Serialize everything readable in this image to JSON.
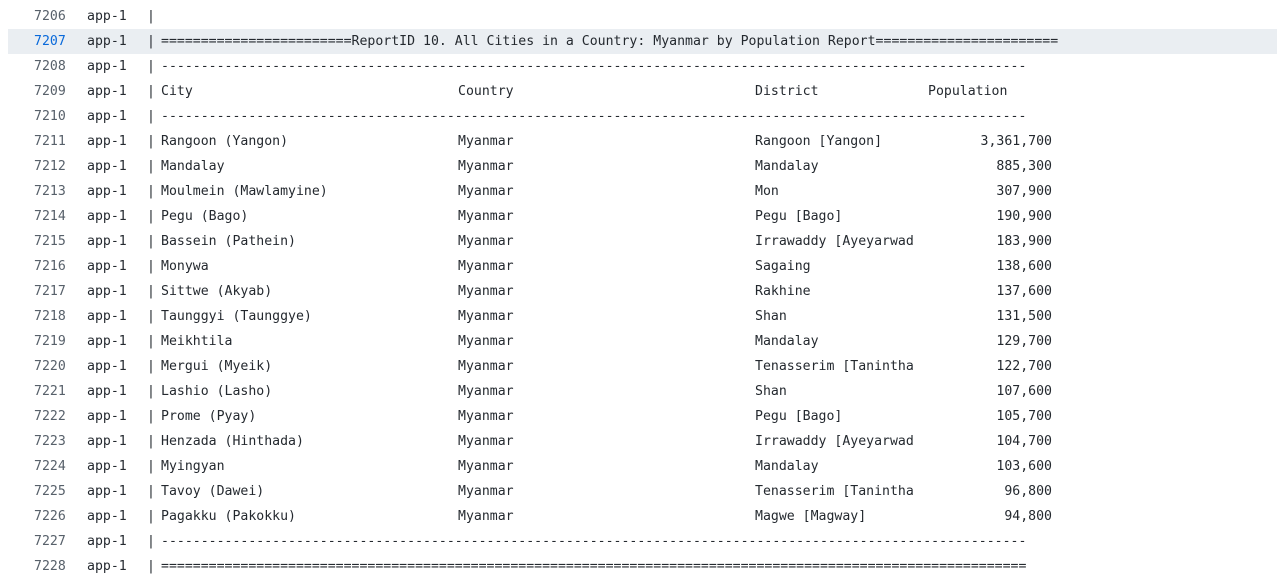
{
  "log": {
    "prefix": "app-1",
    "bar": "|",
    "lines": [
      {
        "no": "7206",
        "kind": "text",
        "text": ""
      },
      {
        "no": "7207",
        "kind": "text",
        "highlight": true,
        "text": "========================ReportID 10. All Cities in a Country: Myanmar by Population Report======================="
      },
      {
        "no": "7208",
        "kind": "text",
        "text": "-------------------------------------------------------------------------------------------------------------"
      },
      {
        "no": "7209",
        "kind": "header",
        "city": "City",
        "country": "Country",
        "district": "District",
        "population": "Population"
      },
      {
        "no": "7210",
        "kind": "text",
        "text": "-------------------------------------------------------------------------------------------------------------"
      },
      {
        "no": "7211",
        "kind": "row",
        "city": "Rangoon (Yangon)",
        "country": "Myanmar",
        "district": "Rangoon [Yangon]",
        "population": "3,361,700"
      },
      {
        "no": "7212",
        "kind": "row",
        "city": "Mandalay",
        "country": "Myanmar",
        "district": "Mandalay",
        "population": "885,300"
      },
      {
        "no": "7213",
        "kind": "row",
        "city": "Moulmein (Mawlamyine)",
        "country": "Myanmar",
        "district": "Mon",
        "population": "307,900"
      },
      {
        "no": "7214",
        "kind": "row",
        "city": "Pegu (Bago)",
        "country": "Myanmar",
        "district": "Pegu [Bago]",
        "population": "190,900"
      },
      {
        "no": "7215",
        "kind": "row",
        "city": "Bassein (Pathein)",
        "country": "Myanmar",
        "district": "Irrawaddy [Ayeyarwad",
        "population": "183,900"
      },
      {
        "no": "7216",
        "kind": "row",
        "city": "Monywa",
        "country": "Myanmar",
        "district": "Sagaing",
        "population": "138,600"
      },
      {
        "no": "7217",
        "kind": "row",
        "city": "Sittwe (Akyab)",
        "country": "Myanmar",
        "district": "Rakhine",
        "population": "137,600"
      },
      {
        "no": "7218",
        "kind": "row",
        "city": "Taunggyi (Taunggye)",
        "country": "Myanmar",
        "district": "Shan",
        "population": "131,500"
      },
      {
        "no": "7219",
        "kind": "row",
        "city": "Meikhtila",
        "country": "Myanmar",
        "district": "Mandalay",
        "population": "129,700"
      },
      {
        "no": "7220",
        "kind": "row",
        "city": "Mergui (Myeik)",
        "country": "Myanmar",
        "district": "Tenasserim [Tanintha",
        "population": "122,700"
      },
      {
        "no": "7221",
        "kind": "row",
        "city": "Lashio (Lasho)",
        "country": "Myanmar",
        "district": "Shan",
        "population": "107,600"
      },
      {
        "no": "7222",
        "kind": "row",
        "city": "Prome (Pyay)",
        "country": "Myanmar",
        "district": "Pegu [Bago]",
        "population": "105,700"
      },
      {
        "no": "7223",
        "kind": "row",
        "city": "Henzada (Hinthada)",
        "country": "Myanmar",
        "district": "Irrawaddy [Ayeyarwad",
        "population": "104,700"
      },
      {
        "no": "7224",
        "kind": "row",
        "city": "Myingyan",
        "country": "Myanmar",
        "district": "Mandalay",
        "population": "103,600"
      },
      {
        "no": "7225",
        "kind": "row",
        "city": "Tavoy (Dawei)",
        "country": "Myanmar",
        "district": "Tenasserim [Tanintha",
        "population": "96,800"
      },
      {
        "no": "7226",
        "kind": "row",
        "city": "Pagakku (Pakokku)",
        "country": "Myanmar",
        "district": "Magwe [Magway]",
        "population": "94,800"
      },
      {
        "no": "7227",
        "kind": "text",
        "text": "-------------------------------------------------------------------------------------------------------------"
      },
      {
        "no": "7228",
        "kind": "text",
        "text": "============================================================================================================="
      }
    ]
  },
  "colors": {
    "highlight_bg": "#eaeef2",
    "highlight_line_number": "#0969da",
    "line_number": "#57606a",
    "text": "#24292f"
  }
}
